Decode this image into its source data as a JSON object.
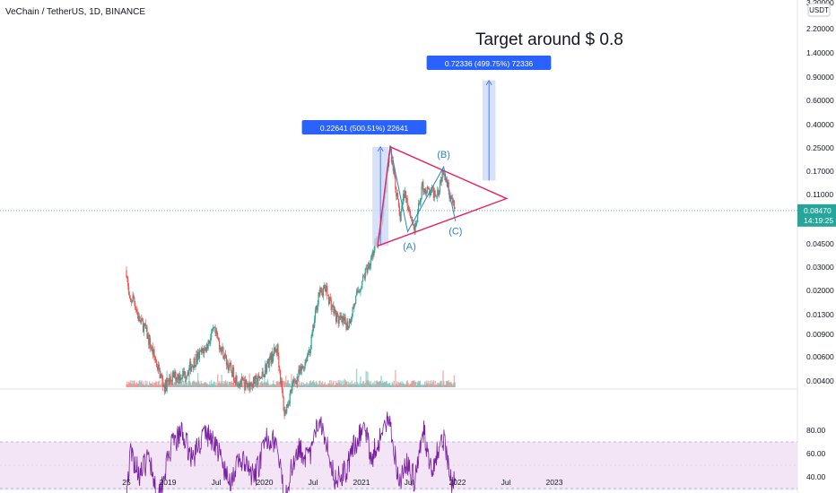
{
  "header": {
    "symbol": "VeChain / TetherUS, 1D, BINANCE"
  },
  "price_axis": {
    "currency": "USDT",
    "top_partial": "3.?0000",
    "ticks": [
      "2.20000",
      "1.40000",
      "0.90000",
      "0.60000",
      "0.40000",
      "0.25000",
      "0.17000",
      "0.11000",
      "0.06800",
      "0.04500",
      "0.03000",
      "0.02000",
      "0.01300",
      "0.00900",
      "0.00600",
      "0.00400"
    ],
    "current_price": "0.08470",
    "countdown": "14:19:25"
  },
  "rsi_axis": {
    "ticks": [
      "80.00",
      "60.00",
      "40.00"
    ]
  },
  "time_axis": {
    "ticks": [
      "25",
      "2019",
      "Jul",
      "2020",
      "Jul",
      "2021",
      "Jul",
      "2022",
      "Jul",
      "2023"
    ]
  },
  "annotations": {
    "headline": "Target around $ 0.8",
    "measure_1": "0.22641 (500.51%) 22641",
    "measure_2": "0.72336 (499.75%) 72336",
    "wave_a": "(A)",
    "wave_b": "(B)",
    "wave_c": "(C)"
  },
  "colors": {
    "candle_up": "#26a69a",
    "candle_down": "#ef5350",
    "triangle": "#e91e63",
    "measure_fill": "#c9d8f5",
    "measure_line": "#2962ff",
    "label_bg": "#2962ff",
    "wave_text": "#2e86c1",
    "rsi_line": "#7b1fa2",
    "rsi_band": "#f3e5f5",
    "price_tag": "#26a69a"
  },
  "chart_data": {
    "type": "candlestick",
    "title": "VeChain / TetherUS, 1D, BINANCE",
    "y_scale": "log",
    "ylim": [
      0.0035,
      3.2
    ],
    "x_range": [
      "2018-07-25",
      "2023-04"
    ],
    "price_series": [
      {
        "x": "2018-07-25",
        "y": 0.029
      },
      {
        "x": "2018-08-05",
        "y": 0.016
      },
      {
        "x": "2018-08-20",
        "y": 0.018
      },
      {
        "x": "2018-09-10",
        "y": 0.012
      },
      {
        "x": "2018-10-01",
        "y": 0.0105
      },
      {
        "x": "2018-11-15",
        "y": 0.0055
      },
      {
        "x": "2018-12-15",
        "y": 0.0036
      },
      {
        "x": "2019-01-15",
        "y": 0.0043
      },
      {
        "x": "2019-03-01",
        "y": 0.0045
      },
      {
        "x": "2019-04-15",
        "y": 0.006
      },
      {
        "x": "2019-05-20",
        "y": 0.0072
      },
      {
        "x": "2019-06-20",
        "y": 0.0098
      },
      {
        "x": "2019-07-15",
        "y": 0.0075
      },
      {
        "x": "2019-08-15",
        "y": 0.0052
      },
      {
        "x": "2019-09-20",
        "y": 0.004
      },
      {
        "x": "2019-10-25",
        "y": 0.0037
      },
      {
        "x": "2019-12-15",
        "y": 0.0042
      },
      {
        "x": "2020-01-15",
        "y": 0.0058
      },
      {
        "x": "2020-02-15",
        "y": 0.0072
      },
      {
        "x": "2020-03-13",
        "y": 0.0022
      },
      {
        "x": "2020-04-15",
        "y": 0.0038
      },
      {
        "x": "2020-05-20",
        "y": 0.005
      },
      {
        "x": "2020-06-20",
        "y": 0.0075
      },
      {
        "x": "2020-07-20",
        "y": 0.019
      },
      {
        "x": "2020-08-15",
        "y": 0.021
      },
      {
        "x": "2020-09-10",
        "y": 0.015
      },
      {
        "x": "2020-10-01",
        "y": 0.012
      },
      {
        "x": "2020-11-10",
        "y": 0.011
      },
      {
        "x": "2020-12-10",
        "y": 0.018
      },
      {
        "x": "2021-01-05",
        "y": 0.025
      },
      {
        "x": "2021-02-10",
        "y": 0.04
      },
      {
        "x": "2021-03-10",
        "y": 0.055
      },
      {
        "x": "2021-04-17",
        "y": 0.265
      },
      {
        "x": "2021-05-01",
        "y": 0.17
      },
      {
        "x": "2021-05-23",
        "y": 0.072
      },
      {
        "x": "2021-06-10",
        "y": 0.12
      },
      {
        "x": "2021-07-20",
        "y": 0.058
      },
      {
        "x": "2021-08-15",
        "y": 0.13
      },
      {
        "x": "2021-09-15",
        "y": 0.115
      },
      {
        "x": "2021-10-15",
        "y": 0.12
      },
      {
        "x": "2021-11-05",
        "y": 0.185
      },
      {
        "x": "2021-12-05",
        "y": 0.1
      },
      {
        "x": "2021-12-20",
        "y": 0.0847
      }
    ],
    "rsi_series": [
      {
        "x": "2018-07-25",
        "y": 28
      },
      {
        "x": "2018-08-10",
        "y": 60
      },
      {
        "x": "2018-09-15",
        "y": 42
      },
      {
        "x": "2018-10-20",
        "y": 58
      },
      {
        "x": "2018-11-20",
        "y": 22
      },
      {
        "x": "2019-01-10",
        "y": 65
      },
      {
        "x": "2019-02-20",
        "y": 78
      },
      {
        "x": "2019-04-01",
        "y": 55
      },
      {
        "x": "2019-05-15",
        "y": 78
      },
      {
        "x": "2019-06-25",
        "y": 70
      },
      {
        "x": "2019-08-15",
        "y": 35
      },
      {
        "x": "2019-10-01",
        "y": 55
      },
      {
        "x": "2019-11-20",
        "y": 38
      },
      {
        "x": "2020-01-10",
        "y": 75
      },
      {
        "x": "2020-02-10",
        "y": 70
      },
      {
        "x": "2020-03-13",
        "y": 22
      },
      {
        "x": "2020-05-01",
        "y": 66
      },
      {
        "x": "2020-06-15",
        "y": 55
      },
      {
        "x": "2020-07-25",
        "y": 92
      },
      {
        "x": "2020-08-20",
        "y": 70
      },
      {
        "x": "2020-09-20",
        "y": 38
      },
      {
        "x": "2020-11-01",
        "y": 45
      },
      {
        "x": "2020-12-01",
        "y": 66
      },
      {
        "x": "2021-01-10",
        "y": 84
      },
      {
        "x": "2021-02-05",
        "y": 56
      },
      {
        "x": "2021-03-10",
        "y": 74
      },
      {
        "x": "2021-04-15",
        "y": 90
      },
      {
        "x": "2021-05-20",
        "y": 36
      },
      {
        "x": "2021-06-20",
        "y": 52
      },
      {
        "x": "2021-07-20",
        "y": 36
      },
      {
        "x": "2021-08-20",
        "y": 80
      },
      {
        "x": "2021-09-20",
        "y": 48
      },
      {
        "x": "2021-10-20",
        "y": 64
      },
      {
        "x": "2021-11-05",
        "y": 74
      },
      {
        "x": "2021-12-05",
        "y": 32
      },
      {
        "x": "2021-12-20",
        "y": 38
      }
    ],
    "triangle_points": [
      {
        "x": "2021-04-17",
        "y": 0.265
      },
      {
        "x": "2022-07-01",
        "y": 0.105
      },
      {
        "x": "2021-03-01",
        "y": 0.045
      }
    ],
    "wave_points": [
      {
        "name": "(A)",
        "x": "2021-06-22",
        "y": 0.058
      },
      {
        "name": "(B)",
        "x": "2021-11-05",
        "y": 0.185
      },
      {
        "name": "(C)",
        "x": "2021-12-20",
        "y": 0.07
      }
    ],
    "measures": [
      {
        "label": "0.22641 (500.51%) 22641",
        "x": "2021-03-01",
        "y_from": 0.045,
        "y_to": 0.265
      },
      {
        "label": "0.72336 (499.75%) 72336",
        "x0": "2022-04-01",
        "x1": "2022-05-20",
        "y_from": 0.145,
        "y_to": 0.87
      }
    ]
  }
}
